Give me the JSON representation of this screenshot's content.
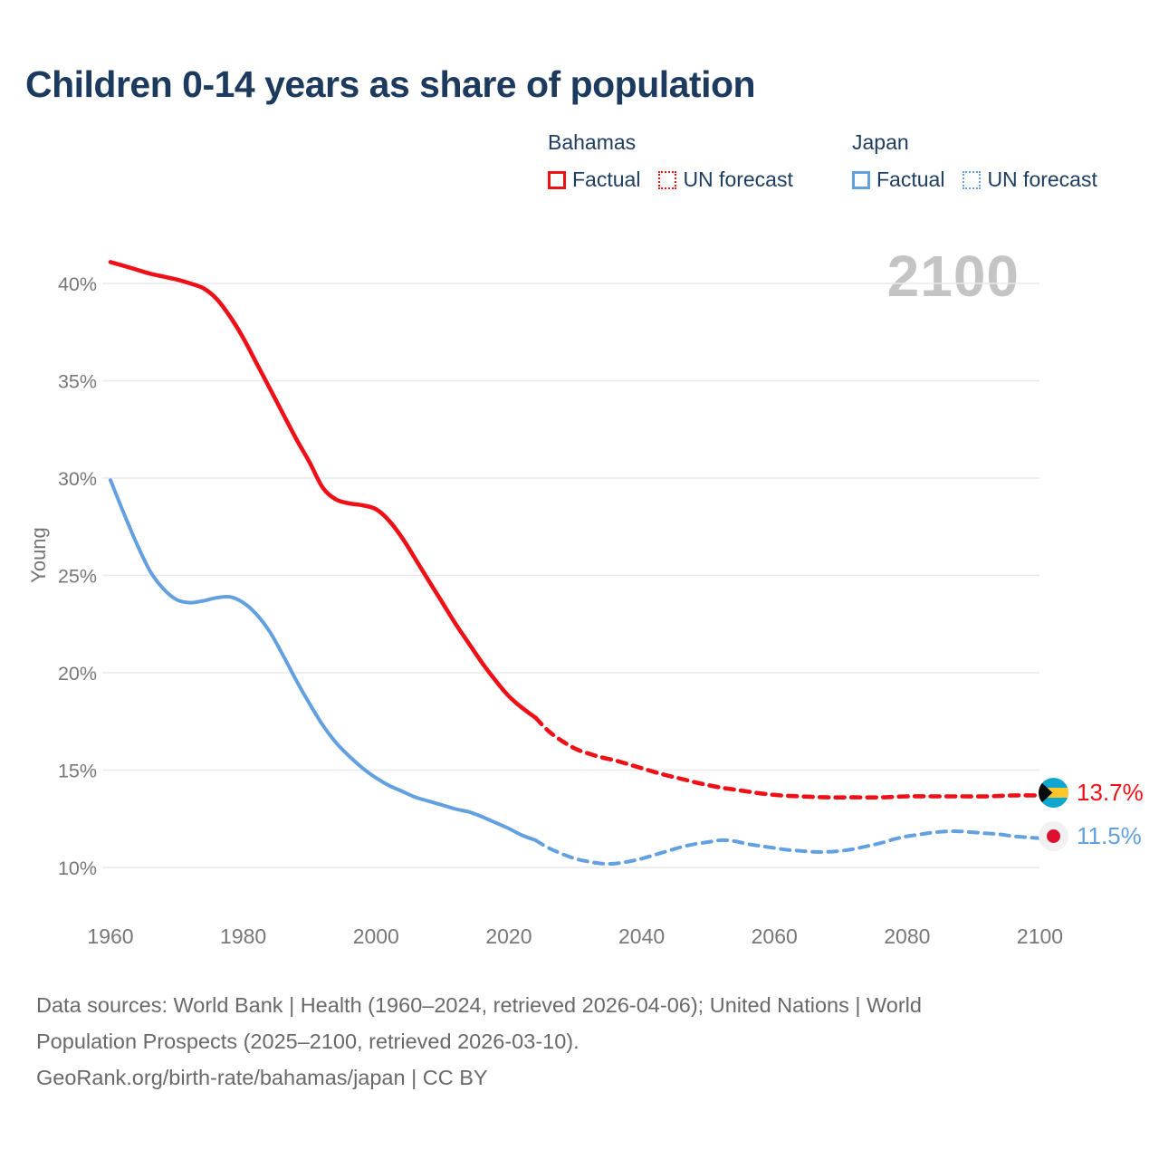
{
  "title": "Children 0-14 years as share of population",
  "watermark": "2100",
  "legend": {
    "groups": [
      {
        "name": "Bahamas",
        "color": "#ee1016",
        "items": [
          {
            "label": "Factual",
            "style": "solid"
          },
          {
            "label": "UN forecast",
            "style": "dotted"
          }
        ]
      },
      {
        "name": "Japan",
        "color": "#62a0e0",
        "items": [
          {
            "label": "Factual",
            "style": "solid"
          },
          {
            "label": "UN forecast",
            "style": "dotted"
          }
        ]
      }
    ]
  },
  "end_labels": [
    {
      "series": "Bahamas",
      "flag": "bahamas-flag",
      "value": "13.7%",
      "color": "#ee1016"
    },
    {
      "series": "Japan",
      "flag": "japan-flag",
      "value": "11.5%",
      "color": "#62a0e0"
    }
  ],
  "footer": {
    "lines": [
      "Data sources: World Bank | Health (1960–2024, retrieved 2026-04-06); United Nations | World",
      "Population Prospects (2025–2100, retrieved 2026-03-10).",
      "GeoRank.org/birth-rate/bahamas/japan | CC BY"
    ]
  },
  "chart_data": {
    "type": "line",
    "title": "Children 0-14 years as share of population",
    "xlabel": "",
    "ylabel": "Young",
    "xlim": [
      1958.5,
      2101
    ],
    "ylim": [
      8.5,
      42.5
    ],
    "xticks": [
      1960,
      1980,
      2000,
      2020,
      2040,
      2060,
      2080,
      2100
    ],
    "yticks": [
      10,
      15,
      20,
      25,
      30,
      35,
      40
    ],
    "ytick_suffix": "%",
    "grid": true,
    "legend_position": "top-right",
    "series": [
      {
        "name": "Bahamas Factual",
        "color": "#ee1016",
        "style": "solid",
        "points": [
          [
            1960,
            41.1
          ],
          [
            1962,
            40.9
          ],
          [
            1964,
            40.7
          ],
          [
            1966,
            40.5
          ],
          [
            1968,
            40.35
          ],
          [
            1970,
            40.2
          ],
          [
            1972,
            40.0
          ],
          [
            1974,
            39.75
          ],
          [
            1976,
            39.2
          ],
          [
            1978,
            38.3
          ],
          [
            1980,
            37.2
          ],
          [
            1982,
            35.9
          ],
          [
            1984,
            34.6
          ],
          [
            1986,
            33.3
          ],
          [
            1988,
            32.0
          ],
          [
            1990,
            30.8
          ],
          [
            1992,
            29.5
          ],
          [
            1994,
            28.9
          ],
          [
            1996,
            28.7
          ],
          [
            1998,
            28.6
          ],
          [
            2000,
            28.4
          ],
          [
            2002,
            27.8
          ],
          [
            2004,
            26.9
          ],
          [
            2006,
            25.8
          ],
          [
            2008,
            24.7
          ],
          [
            2010,
            23.6
          ],
          [
            2012,
            22.5
          ],
          [
            2014,
            21.5
          ],
          [
            2016,
            20.5
          ],
          [
            2018,
            19.6
          ],
          [
            2020,
            18.8
          ],
          [
            2022,
            18.2
          ],
          [
            2024,
            17.7
          ]
        ]
      },
      {
        "name": "Bahamas UN forecast",
        "color": "#ee1016",
        "style": "dashed",
        "points": [
          [
            2024,
            17.7
          ],
          [
            2026,
            17.0
          ],
          [
            2028,
            16.5
          ],
          [
            2030,
            16.1
          ],
          [
            2032,
            15.85
          ],
          [
            2034,
            15.65
          ],
          [
            2036,
            15.5
          ],
          [
            2038,
            15.3
          ],
          [
            2040,
            15.1
          ],
          [
            2043,
            14.8
          ],
          [
            2046,
            14.55
          ],
          [
            2049,
            14.3
          ],
          [
            2052,
            14.1
          ],
          [
            2055,
            13.95
          ],
          [
            2058,
            13.8
          ],
          [
            2061,
            13.7
          ],
          [
            2064,
            13.65
          ],
          [
            2068,
            13.6
          ],
          [
            2072,
            13.6
          ],
          [
            2076,
            13.6
          ],
          [
            2080,
            13.65
          ],
          [
            2084,
            13.65
          ],
          [
            2088,
            13.65
          ],
          [
            2092,
            13.65
          ],
          [
            2096,
            13.7
          ],
          [
            2100,
            13.7
          ]
        ]
      },
      {
        "name": "Japan Factual",
        "color": "#62a0e0",
        "style": "solid",
        "points": [
          [
            1960,
            29.9
          ],
          [
            1962,
            28.2
          ],
          [
            1964,
            26.6
          ],
          [
            1966,
            25.2
          ],
          [
            1968,
            24.3
          ],
          [
            1970,
            23.75
          ],
          [
            1972,
            23.6
          ],
          [
            1974,
            23.7
          ],
          [
            1976,
            23.85
          ],
          [
            1978,
            23.9
          ],
          [
            1980,
            23.6
          ],
          [
            1982,
            23.0
          ],
          [
            1984,
            22.1
          ],
          [
            1986,
            20.9
          ],
          [
            1988,
            19.6
          ],
          [
            1990,
            18.4
          ],
          [
            1992,
            17.3
          ],
          [
            1994,
            16.4
          ],
          [
            1996,
            15.7
          ],
          [
            1998,
            15.1
          ],
          [
            2000,
            14.6
          ],
          [
            2002,
            14.2
          ],
          [
            2004,
            13.9
          ],
          [
            2006,
            13.6
          ],
          [
            2008,
            13.4
          ],
          [
            2010,
            13.2
          ],
          [
            2012,
            13.0
          ],
          [
            2014,
            12.85
          ],
          [
            2016,
            12.6
          ],
          [
            2018,
            12.3
          ],
          [
            2020,
            12.0
          ],
          [
            2022,
            11.65
          ],
          [
            2024,
            11.4
          ]
        ]
      },
      {
        "name": "Japan UN forecast",
        "color": "#62a0e0",
        "style": "dashed",
        "points": [
          [
            2024,
            11.4
          ],
          [
            2026,
            11.0
          ],
          [
            2028,
            10.7
          ],
          [
            2030,
            10.45
          ],
          [
            2032,
            10.3
          ],
          [
            2034,
            10.2
          ],
          [
            2036,
            10.2
          ],
          [
            2038,
            10.3
          ],
          [
            2040,
            10.45
          ],
          [
            2042,
            10.65
          ],
          [
            2044,
            10.85
          ],
          [
            2046,
            11.05
          ],
          [
            2048,
            11.2
          ],
          [
            2050,
            11.3
          ],
          [
            2052,
            11.4
          ],
          [
            2054,
            11.35
          ],
          [
            2056,
            11.2
          ],
          [
            2058,
            11.1
          ],
          [
            2060,
            11.0
          ],
          [
            2062,
            10.9
          ],
          [
            2064,
            10.85
          ],
          [
            2066,
            10.8
          ],
          [
            2068,
            10.8
          ],
          [
            2070,
            10.85
          ],
          [
            2072,
            10.95
          ],
          [
            2074,
            11.1
          ],
          [
            2076,
            11.25
          ],
          [
            2078,
            11.45
          ],
          [
            2080,
            11.6
          ],
          [
            2082,
            11.7
          ],
          [
            2084,
            11.8
          ],
          [
            2086,
            11.85
          ],
          [
            2088,
            11.85
          ],
          [
            2090,
            11.8
          ],
          [
            2092,
            11.75
          ],
          [
            2094,
            11.7
          ],
          [
            2096,
            11.6
          ],
          [
            2098,
            11.55
          ],
          [
            2100,
            11.5
          ]
        ]
      }
    ]
  }
}
